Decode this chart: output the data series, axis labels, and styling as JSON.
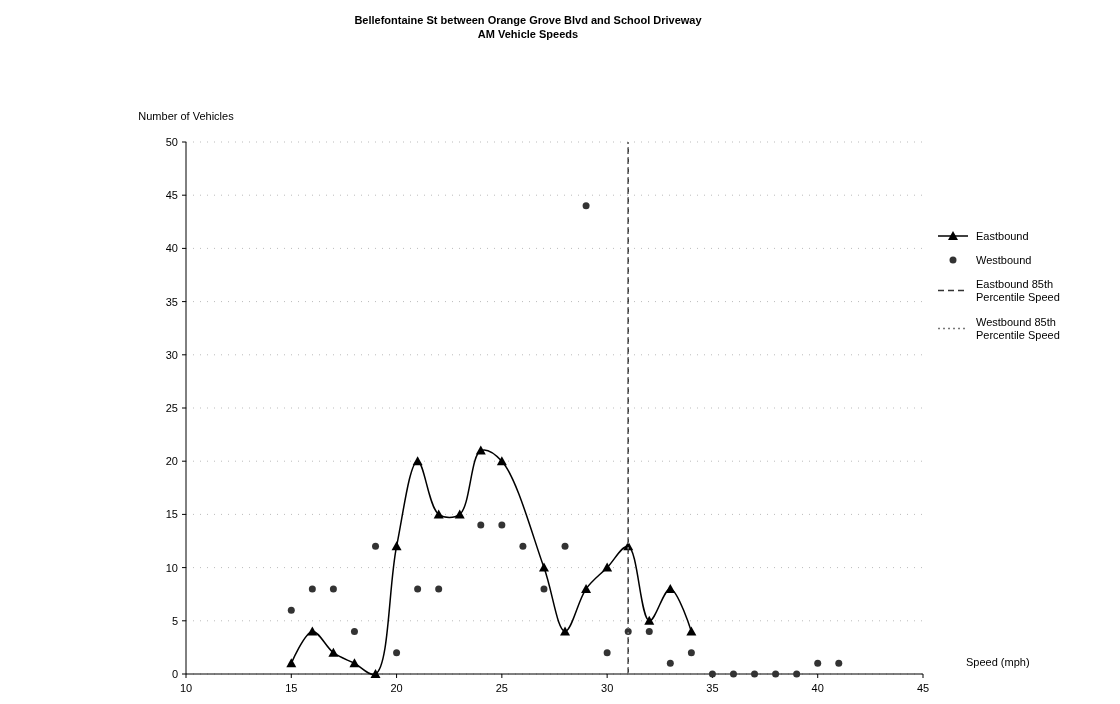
{
  "chart_data": {
    "type": "line",
    "title": "Bellefontaine St between Orange Grove Blvd and School Driveway",
    "subtitle": "AM Vehicle Speeds",
    "xlabel": "Speed (mph)",
    "ylabel": "Number of Vehicles",
    "xlim": [
      10,
      45
    ],
    "xticks": [
      10,
      15,
      20,
      25,
      30,
      35,
      40,
      45
    ],
    "ylim": [
      0,
      50
    ],
    "yticks": [
      0,
      5,
      10,
      15,
      20,
      25,
      30,
      35,
      40,
      45,
      50
    ],
    "grid": "y",
    "legend": "right",
    "series": [
      {
        "name": "Eastbound",
        "color": "#000000",
        "marker": "triangle",
        "x": [
          15,
          16,
          17,
          18,
          19,
          20,
          21,
          22,
          23,
          24,
          25,
          27,
          28,
          29,
          30,
          31,
          32,
          33,
          34
        ],
        "values": [
          1,
          4,
          2,
          1,
          0,
          12,
          20,
          15,
          15,
          21,
          20,
          10,
          4,
          8,
          10,
          12,
          5,
          8,
          4
        ]
      },
      {
        "name": "Westbound",
        "type": "scatter",
        "color": "#333333",
        "marker": "circle",
        "x": [
          15,
          16,
          17,
          18,
          19,
          20,
          21,
          22,
          24,
          25,
          26,
          27,
          28,
          29,
          30,
          31,
          32,
          33,
          34,
          35,
          36,
          37,
          38,
          39,
          40,
          41
        ],
        "values": [
          6,
          8,
          8,
          4,
          12,
          2,
          8,
          8,
          14,
          14,
          12,
          8,
          12,
          44,
          2,
          4,
          4,
          1,
          2,
          0,
          0,
          0,
          0,
          0,
          1,
          1
        ]
      },
      {
        "name": "Eastbound 85th Percentile Speed",
        "color": "#333333",
        "marker": "none",
        "line_style": "dashed",
        "x": [
          31,
          31
        ],
        "values": [
          0,
          50
        ]
      },
      {
        "name": "Westbound 85th Percentile Speed",
        "color": "#777777",
        "marker": "none",
        "line_style": "dotted",
        "x": [
          31,
          31
        ],
        "values": [
          0,
          50
        ]
      }
    ]
  }
}
